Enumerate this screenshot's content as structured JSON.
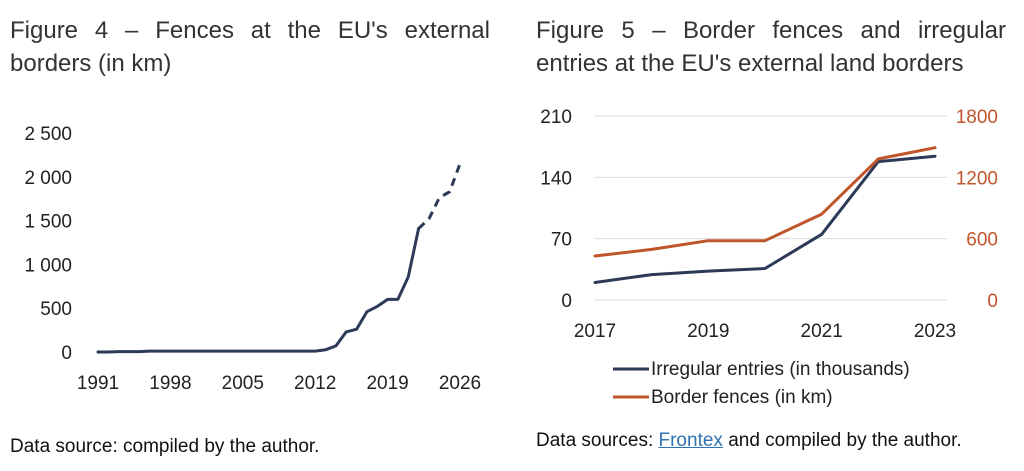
{
  "figure4": {
    "title": "Figure 4 – Fences at the EU's external borders (in km)",
    "source": "Data source: compiled by the author.",
    "chart_data": {
      "type": "line",
      "title": "Figure 4 – Fences at the EU's external borders (in km)",
      "xlabel": "",
      "ylabel": "",
      "xlim": [
        1991,
        2026
      ],
      "ylim": [
        0,
        2500
      ],
      "x_ticks": [
        "1991",
        "1998",
        "2005",
        "2012",
        "2019",
        "2026"
      ],
      "y_ticks": [
        "0",
        "500",
        "1 000",
        "1 500",
        "2 000",
        "2 500"
      ],
      "y_tick_values": [
        0,
        500,
        1000,
        1500,
        2000,
        2500
      ],
      "grid": false,
      "line_color": "#2c3a57",
      "series": [
        {
          "style": "solid",
          "points": [
            [
              1991,
              0
            ],
            [
              1992,
              0
            ],
            [
              1993,
              5
            ],
            [
              1994,
              5
            ],
            [
              1995,
              5
            ],
            [
              1996,
              10
            ],
            [
              1997,
              10
            ],
            [
              1998,
              10
            ],
            [
              1999,
              10
            ],
            [
              2000,
              10
            ],
            [
              2001,
              10
            ],
            [
              2002,
              10
            ],
            [
              2003,
              10
            ],
            [
              2004,
              10
            ],
            [
              2005,
              10
            ],
            [
              2006,
              10
            ],
            [
              2007,
              10
            ],
            [
              2008,
              10
            ],
            [
              2009,
              10
            ],
            [
              2010,
              10
            ],
            [
              2011,
              10
            ],
            [
              2012,
              10
            ],
            [
              2013,
              25
            ],
            [
              2014,
              70
            ],
            [
              2015,
              230
            ],
            [
              2016,
              260
            ],
            [
              2017,
              460
            ],
            [
              2018,
              520
            ],
            [
              2019,
              600
            ],
            [
              2020,
              600
            ],
            [
              2021,
              860
            ],
            [
              2022,
              1410
            ]
          ]
        },
        {
          "style": "dashed",
          "points": [
            [
              2022,
              1410
            ],
            [
              2023,
              1520
            ],
            [
              2024,
              1760
            ],
            [
              2025,
              1830
            ],
            [
              2026,
              2150
            ]
          ]
        }
      ]
    }
  },
  "figure5": {
    "title": "Figure 5 – Border fences and irregular entries at the EU's external land borders",
    "source_prefix": "Data sources: ",
    "source_link": "Frontex",
    "source_suffix": " and compiled by the author.",
    "chart_data": {
      "type": "line",
      "title": "Figure 5 – Border fences and irregular entries at the EU's external land borders",
      "x_ticks": [
        "2017",
        "2019",
        "2021",
        "2023"
      ],
      "xlim": [
        2017,
        2023
      ],
      "y_left": {
        "ticks": [
          "0",
          "70",
          "140",
          "210"
        ],
        "tick_values": [
          0,
          70,
          140,
          210
        ],
        "ylim": [
          0,
          210
        ],
        "color": "#222222"
      },
      "y_right": {
        "ticks": [
          "0",
          "600",
          "1200",
          "1800"
        ],
        "tick_values": [
          0,
          600,
          1200,
          1800
        ],
        "ylim": [
          0,
          1800
        ],
        "color": "#c0552b"
      },
      "grid": true,
      "legend_position": "bottom",
      "x": [
        2017,
        2018,
        2019,
        2020,
        2021,
        2022,
        2023
      ],
      "series": [
        {
          "name": "Irregular entries (in thousands)",
          "axis": "left",
          "color": "#2c3a57",
          "values": [
            20,
            29,
            33,
            36,
            75,
            158,
            164
          ]
        },
        {
          "name": "Border fences (in km)",
          "axis": "right",
          "color": "#c0552b",
          "values": [
            430,
            495,
            580,
            580,
            840,
            1380,
            1490
          ]
        }
      ]
    }
  }
}
